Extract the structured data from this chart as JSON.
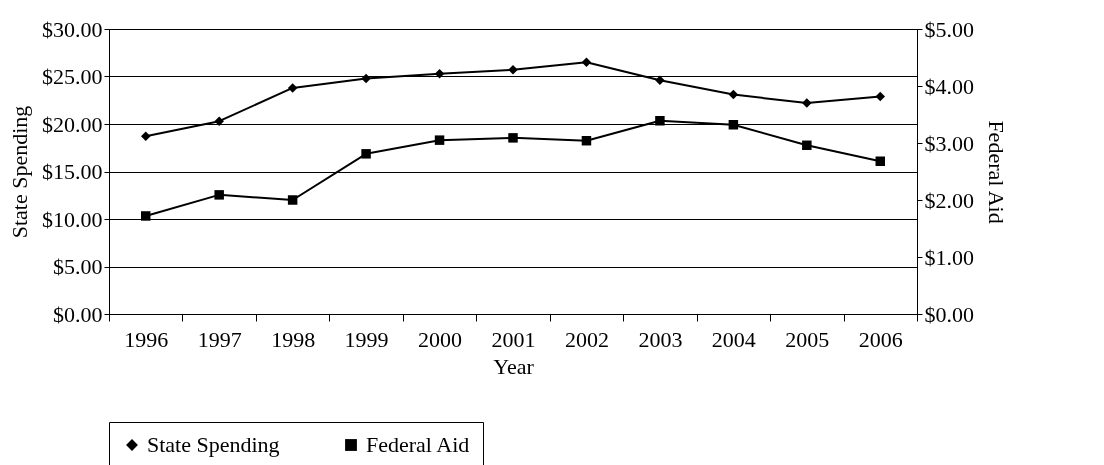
{
  "chart_data": {
    "type": "line",
    "xlabel": "Year",
    "ylabel": "State Spending",
    "y2label": "Federal Aid",
    "categories": [
      "1996",
      "1997",
      "1998",
      "1999",
      "2000",
      "2001",
      "2002",
      "2003",
      "2004",
      "2005",
      "2006"
    ],
    "series": [
      {
        "name": "State Spending",
        "color": "#000000",
        "marker": "diamond",
        "values": [
          18.7,
          20.3,
          23.8,
          24.8,
          25.3,
          25.7,
          26.5,
          24.6,
          23.1,
          22.2,
          22.9
        ]
      },
      {
        "name": "Federal Aid",
        "color": "#000000",
        "marker": "square",
        "axis": "y2",
        "values": [
          1.72,
          2.09,
          2.0,
          2.81,
          3.05,
          3.09,
          3.04,
          3.39,
          3.32,
          2.96,
          2.68
        ]
      }
    ],
    "ylim": [
      0,
      30
    ],
    "yticks": [
      {
        "value": 0,
        "label": "$0.00"
      },
      {
        "value": 5,
        "label": "$5.00"
      },
      {
        "value": 10,
        "label": "$10.00"
      },
      {
        "value": 15,
        "label": "$15.00"
      },
      {
        "value": 20,
        "label": "$20.00"
      },
      {
        "value": 25,
        "label": "$25.00"
      },
      {
        "value": 30,
        "label": "$30.00"
      }
    ],
    "y2lim": [
      0,
      5
    ],
    "y2ticks": [
      {
        "value": 0,
        "label": "$0.00"
      },
      {
        "value": 1,
        "label": "$1.00"
      },
      {
        "value": 2,
        "label": "$2.00"
      },
      {
        "value": 3,
        "label": "$3.00"
      },
      {
        "value": 4,
        "label": "$4.00"
      },
      {
        "value": 5,
        "label": "$5.00"
      }
    ],
    "grid": "y",
    "legend": "bottom"
  }
}
